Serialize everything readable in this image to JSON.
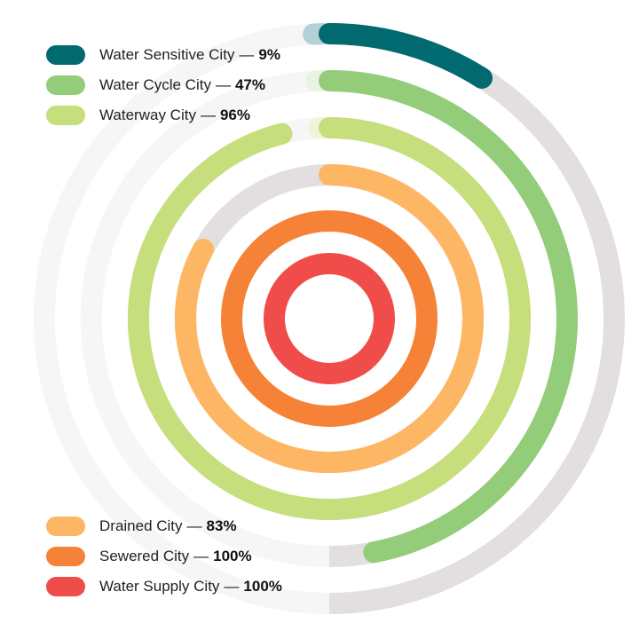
{
  "chart_data": {
    "type": "radial-bar",
    "unit": "%",
    "max": 100,
    "series": [
      {
        "name": "Water Sensitive City",
        "value": 9,
        "color": "#006A70"
      },
      {
        "name": "Water Cycle City",
        "value": 47,
        "color": "#93CD79"
      },
      {
        "name": "Waterway City",
        "value": 96,
        "color": "#C6DE7C"
      },
      {
        "name": "Drained City",
        "value": 83,
        "color": "#FDB663"
      },
      {
        "name": "Sewered City",
        "value": 100,
        "color": "#F58237"
      },
      {
        "name": "Water Supply City",
        "value": 100,
        "color": "#EF4C4A"
      }
    ]
  },
  "legend": {
    "separator": "—",
    "top": [
      {
        "label": "Water Sensitive City",
        "value": "9%",
        "color": "#006A70"
      },
      {
        "label": "Water Cycle City",
        "value": "47%",
        "color": "#93CD79"
      },
      {
        "label": "Waterway City",
        "value": "96%",
        "color": "#C6DE7C"
      }
    ],
    "bottom": [
      {
        "label": "Drained City",
        "value": "83%",
        "color": "#FDB663"
      },
      {
        "label": "Sewered City",
        "value": "100%",
        "color": "#F58237"
      },
      {
        "label": "Water Supply City",
        "value": "100%",
        "color": "#EF4C4A"
      }
    ]
  },
  "colors": {
    "track_shaded": "#E3DFE0",
    "track_light": "#F7F6F6",
    "cap_tints": [
      "#B4D1D5",
      "#E8F3E2",
      "#EEF5DA"
    ]
  }
}
